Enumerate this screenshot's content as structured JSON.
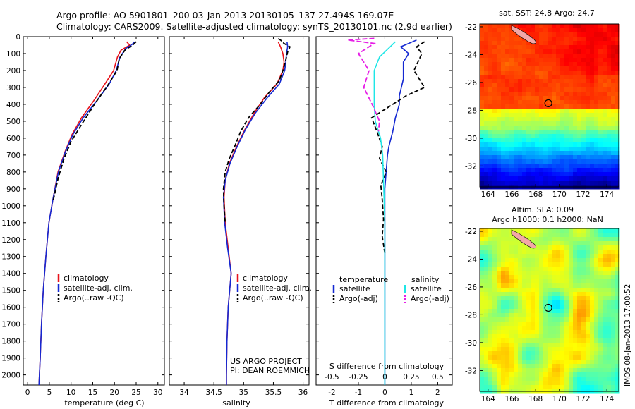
{
  "header": {
    "line1": "Argo profile: AO 5901801_200 03-Jan-2013 20130105_137 27.494S 169.07E",
    "line2": "Climatology: CARS2009. Satellite-adjusted climatology: synTS_20130101.nc (2.9d earlier)"
  },
  "side_label": "IMOS 08-Jan-2013 17:00:52",
  "chart_data": [
    {
      "type": "line",
      "id": "temperature",
      "xlabel": "temperature (deg C)",
      "xlim": [
        -1,
        31.5
      ],
      "ylim": [
        0,
        2060
      ],
      "xticks": [
        0,
        5,
        10,
        15,
        20,
        25,
        30
      ],
      "yticks": [
        0,
        100,
        200,
        300,
        400,
        500,
        600,
        700,
        800,
        900,
        1000,
        1100,
        1200,
        1300,
        1400,
        1500,
        1600,
        1700,
        1800,
        1900,
        2000
      ],
      "legend": [
        "climatology",
        "satellite-adj. clim.",
        "Argo(..raw -QC)"
      ],
      "series": [
        {
          "name": "climatology",
          "color": "#e8121b",
          "dash": "",
          "points": [
            [
              22.8,
              30
            ],
            [
              23.5,
              50
            ],
            [
              21.5,
              80
            ],
            [
              20.7,
              120
            ],
            [
              19.8,
              200
            ],
            [
              17.8,
              280
            ],
            [
              15.2,
              380
            ],
            [
              12.4,
              480
            ],
            [
              10.2,
              580
            ],
            [
              8.6,
              680
            ],
            [
              7.0,
              800
            ],
            [
              5.9,
              950
            ],
            [
              4.9,
              1100
            ],
            [
              4.2,
              1300
            ],
            [
              3.6,
              1500
            ],
            [
              3.2,
              1700
            ],
            [
              2.9,
              1900
            ],
            [
              2.6,
              2060
            ]
          ]
        },
        {
          "name": "satellite-adj. clim.",
          "color": "#1428d2",
          "dash": "",
          "points": [
            [
              24.6,
              30
            ],
            [
              24.1,
              45
            ],
            [
              22.6,
              70
            ],
            [
              21.3,
              120
            ],
            [
              20.4,
              200
            ],
            [
              18.8,
              280
            ],
            [
              15.9,
              380
            ],
            [
              12.8,
              480
            ],
            [
              10.4,
              580
            ],
            [
              8.7,
              680
            ],
            [
              7.1,
              800
            ],
            [
              5.9,
              950
            ],
            [
              4.9,
              1100
            ],
            [
              4.2,
              1300
            ],
            [
              3.6,
              1500
            ],
            [
              3.2,
              1700
            ],
            [
              2.9,
              1900
            ],
            [
              2.6,
              2060
            ]
          ]
        },
        {
          "name": "Argo(..raw -QC)",
          "color": "#000000",
          "dash": "6,3",
          "points": [
            [
              25.0,
              30
            ],
            [
              24.2,
              50
            ],
            [
              22.4,
              80
            ],
            [
              21.1,
              130
            ],
            [
              20.6,
              200
            ],
            [
              18.4,
              290
            ],
            [
              15.4,
              400
            ],
            [
              12.4,
              520
            ],
            [
              10.0,
              620
            ],
            [
              8.4,
              720
            ],
            [
              7.0,
              840
            ],
            [
              5.8,
              980
            ]
          ]
        }
      ]
    },
    {
      "type": "line",
      "id": "salinity",
      "xlabel": "salinity",
      "xlim": [
        33.75,
        36.1
      ],
      "ylim": [
        0,
        2060
      ],
      "xticks": [
        34,
        34.5,
        35,
        35.5,
        36
      ],
      "legend": [
        "climatology",
        "satellite-adj. clim.",
        "Argo(..raw -QC)"
      ],
      "annotation": [
        "US ARGO PROJECT",
        "PI: DEAN ROEMMICH"
      ],
      "series": [
        {
          "name": "climatology",
          "color": "#e8121b",
          "dash": "",
          "points": [
            [
              35.58,
              30
            ],
            [
              35.62,
              60
            ],
            [
              35.66,
              100
            ],
            [
              35.68,
              150
            ],
            [
              35.66,
              200
            ],
            [
              35.56,
              280
            ],
            [
              35.35,
              360
            ],
            [
              35.18,
              450
            ],
            [
              35.02,
              550
            ],
            [
              34.88,
              650
            ],
            [
              34.76,
              750
            ],
            [
              34.69,
              850
            ],
            [
              34.67,
              950
            ],
            [
              34.69,
              1100
            ],
            [
              34.74,
              1250
            ],
            [
              34.79,
              1400
            ],
            [
              34.74,
              1600
            ],
            [
              34.72,
              1800
            ],
            [
              34.71,
              2000
            ],
            [
              34.71,
              2060
            ]
          ]
        },
        {
          "name": "satellite-adj. clim.",
          "color": "#1428d2",
          "dash": "",
          "points": [
            [
              35.73,
              30
            ],
            [
              35.74,
              60
            ],
            [
              35.72,
              100
            ],
            [
              35.71,
              150
            ],
            [
              35.69,
              200
            ],
            [
              35.6,
              280
            ],
            [
              35.4,
              360
            ],
            [
              35.2,
              450
            ],
            [
              35.03,
              550
            ],
            [
              34.89,
              650
            ],
            [
              34.77,
              750
            ],
            [
              34.69,
              850
            ],
            [
              34.66,
              950
            ],
            [
              34.68,
              1100
            ],
            [
              34.73,
              1250
            ],
            [
              34.79,
              1400
            ],
            [
              34.74,
              1600
            ],
            [
              34.72,
              1800
            ],
            [
              34.71,
              2000
            ],
            [
              34.71,
              2060
            ]
          ]
        },
        {
          "name": "Argo(..raw -QC)",
          "color": "#000000",
          "dash": "6,3",
          "points": [
            [
              35.58,
              12
            ],
            [
              35.62,
              20
            ],
            [
              35.68,
              40
            ],
            [
              35.78,
              60
            ],
            [
              35.74,
              90
            ],
            [
              35.7,
              150
            ],
            [
              35.66,
              200
            ],
            [
              35.6,
              260
            ],
            [
              35.45,
              320
            ],
            [
              35.28,
              400
            ],
            [
              35.08,
              480
            ],
            [
              34.95,
              560
            ],
            [
              34.86,
              640
            ],
            [
              34.76,
              720
            ],
            [
              34.69,
              800
            ],
            [
              34.66,
              900
            ],
            [
              34.67,
              1000
            ],
            [
              34.69,
              1100
            ]
          ]
        }
      ]
    },
    {
      "type": "line",
      "id": "difference",
      "xlabel": "T difference from climatology",
      "xlim": [
        -2.6,
        2.55
      ],
      "ylim": [
        0,
        2060
      ],
      "xticks": [
        -2,
        -1,
        0,
        1,
        2
      ],
      "top_axis_label": "S difference from climatology",
      "top_ticks": [
        "-0.5",
        "-0.25",
        "0",
        "0.25",
        "0.5"
      ],
      "top_tick_values": [
        -0.5,
        -0.25,
        0,
        0.25,
        0.5
      ],
      "legend_temperature_title": "temperature",
      "legend_salinity_title": "salinity",
      "legend": [
        "satellite",
        "Argo(-adj)",
        "satellite",
        "Argo(-adj)"
      ],
      "series": [
        {
          "name": "T satellite",
          "color": "#1428d2",
          "dash": "",
          "points": [
            [
              1.2,
              20
            ],
            [
              0.6,
              60
            ],
            [
              0.9,
              100
            ],
            [
              0.7,
              150
            ],
            [
              0.7,
              250
            ],
            [
              0.55,
              350
            ],
            [
              0.55,
              400
            ],
            [
              0.4,
              480
            ],
            [
              0.3,
              560
            ],
            [
              0.15,
              650
            ],
            [
              0.1,
              700
            ],
            [
              0.05,
              800
            ],
            [
              0.0,
              900
            ],
            [
              0.0,
              2060
            ]
          ]
        },
        {
          "name": "T Argo(-adj)",
          "color": "#000000",
          "dash": "6,3",
          "points": [
            [
              1.5,
              30
            ],
            [
              1.2,
              60
            ],
            [
              1.4,
              100
            ],
            [
              1.1,
              200
            ],
            [
              1.5,
              300
            ],
            [
              0.8,
              350
            ],
            [
              0.3,
              400
            ],
            [
              -0.5,
              480
            ],
            [
              -0.3,
              560
            ],
            [
              -0.1,
              650
            ],
            [
              -0.2,
              720
            ],
            [
              0.05,
              800
            ],
            [
              -0.15,
              880
            ],
            [
              -0.1,
              960
            ],
            [
              -0.05,
              1080
            ],
            [
              -0.1,
              1180
            ],
            [
              0.0,
              1280
            ]
          ]
        },
        {
          "name": "S satellite",
          "color": "#1ee6e6",
          "dash": "",
          "points": [
            [
              0.1,
              30
            ],
            [
              0.05,
              60
            ],
            [
              -0.05,
              120
            ],
            [
              -0.1,
              200
            ],
            [
              -0.1,
              300
            ],
            [
              -0.1,
              400
            ],
            [
              -0.09,
              500
            ],
            [
              -0.04,
              600
            ],
            [
              -0.02,
              700
            ],
            [
              -0.01,
              900
            ],
            [
              0.0,
              1100
            ],
            [
              0.0,
              2060
            ]
          ]
        },
        {
          "name": "S Argo(-adj)",
          "color": "#e61ee6",
          "dash": "7,3",
          "points": [
            [
              -0.1,
              10
            ],
            [
              -0.35,
              20
            ],
            [
              -0.1,
              40
            ],
            [
              -0.25,
              100
            ],
            [
              -0.15,
              200
            ],
            [
              -0.2,
              300
            ],
            [
              -0.12,
              400
            ],
            [
              -0.05,
              500
            ],
            [
              -0.06,
              560
            ]
          ]
        }
      ]
    },
    {
      "type": "heatmap",
      "id": "sst-map",
      "title": "sat. SST: 24.8 Argo: 24.7",
      "xlim": [
        163.3,
        175.0
      ],
      "ylim": [
        -33.5,
        -21.8
      ],
      "xticks": [
        164,
        166,
        168,
        170,
        172,
        174
      ],
      "yticks": [
        -22,
        -24,
        -26,
        -28,
        -30,
        -32
      ],
      "marker": {
        "lon": 169.07,
        "lat": -27.494
      }
    },
    {
      "type": "heatmap",
      "id": "sla-map",
      "title_lines": [
        "Altim. SLA: 0.09",
        "Argo h1000: 0.1 h2000: NaN"
      ],
      "xlim": [
        163.3,
        175.0
      ],
      "ylim": [
        -33.5,
        -21.8
      ],
      "xticks": [
        164,
        166,
        168,
        170,
        172,
        174
      ],
      "yticks": [
        -22,
        -24,
        -26,
        -28,
        -30,
        -32
      ],
      "marker": {
        "lon": 169.07,
        "lat": -27.494
      }
    }
  ]
}
